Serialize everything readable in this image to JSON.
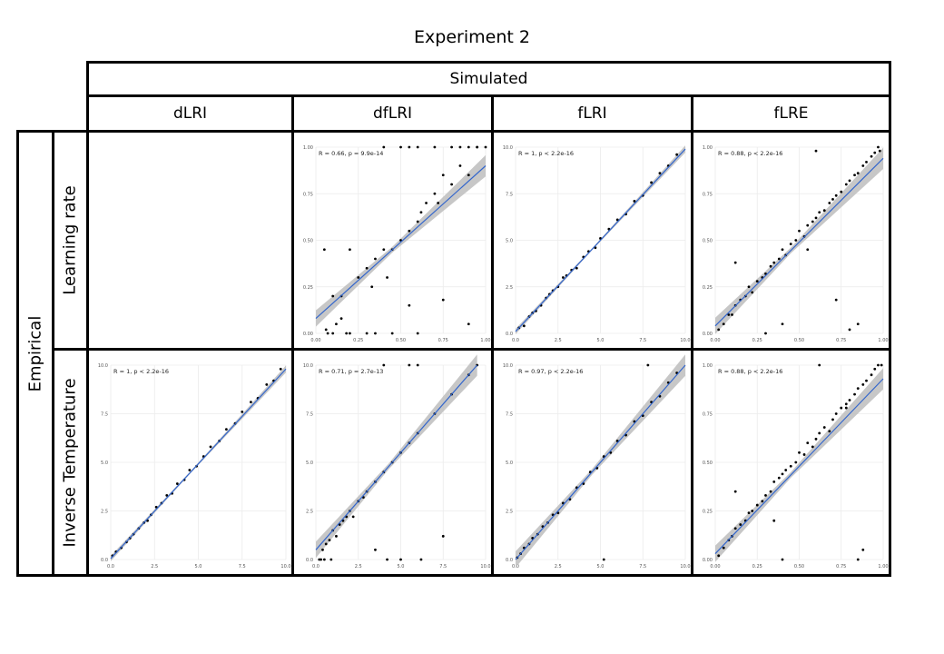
{
  "figure": {
    "title": "Experiment 2"
  },
  "headers": {
    "top": "Simulated",
    "columns": [
      "dLRI",
      "dfLRI",
      "fLRI",
      "fLRE"
    ],
    "side": "Empirical",
    "rows": [
      "Learning rate",
      "Inverse Temperature"
    ]
  },
  "colors": {
    "line": "#3366cc",
    "band": "#bdbdbd",
    "points": "#000000",
    "grid": "#ebebeb"
  },
  "chart_data": [
    {
      "id": "lr-dfLRI",
      "type": "scatter",
      "annotation": "R = 0.66, p = 9.9e-14",
      "xlim": [
        0,
        1
      ],
      "ylim": [
        0,
        1
      ],
      "xticks": [
        "0.00",
        "0.25",
        "0.50",
        "0.75",
        "1.00"
      ],
      "yticks": [
        "0.00",
        "0.25",
        "0.50",
        "0.75",
        "1.00"
      ],
      "x": [
        0.05,
        0.07,
        0.1,
        0.12,
        0.15,
        0.18,
        0.2,
        0.25,
        0.3,
        0.33,
        0.35,
        0.4,
        0.42,
        0.45,
        0.5,
        0.55,
        0.6,
        0.62,
        0.65,
        0.7,
        0.72,
        0.75,
        0.8,
        0.85,
        0.9,
        0.95,
        0.06,
        0.1,
        0.15,
        0.2,
        0.3,
        0.35,
        0.45,
        0.55,
        0.6,
        0.75,
        0.9,
        0.4,
        0.5,
        0.55,
        0.6,
        0.7,
        0.8,
        0.85,
        0.9,
        0.95,
        1.0
      ],
      "y": [
        0.45,
        0.0,
        0.2,
        0.05,
        0.2,
        0.0,
        0.45,
        0.3,
        0.35,
        0.25,
        0.4,
        0.45,
        0.3,
        0.45,
        0.5,
        0.55,
        0.6,
        0.65,
        0.7,
        0.75,
        0.7,
        0.85,
        0.8,
        0.9,
        0.85,
        1.0,
        0.02,
        0.0,
        0.08,
        0.0,
        0.0,
        0.0,
        0.0,
        0.15,
        0.0,
        0.18,
        0.05,
        1.0,
        1.0,
        1.0,
        1.0,
        1.0,
        1.0,
        1.0,
        1.0,
        1.0,
        1.0
      ],
      "fit": {
        "x": [
          0,
          1
        ],
        "y": [
          0.08,
          0.9
        ]
      }
    },
    {
      "id": "lr-fLRI",
      "type": "scatter",
      "annotation": "R = 1, p < 2.2e-16",
      "xlim": [
        0,
        10
      ],
      "ylim": [
        0,
        10
      ],
      "xticks": [
        "0.0",
        "2.5",
        "5.0",
        "7.5",
        "10.0"
      ],
      "yticks": [
        "0.0",
        "2.5",
        "5.0",
        "7.5",
        "10.0"
      ],
      "x": [
        0.2,
        0.5,
        0.8,
        1.0,
        1.2,
        1.5,
        1.8,
        2.0,
        2.2,
        2.5,
        2.8,
        3.0,
        3.3,
        3.6,
        4.0,
        4.3,
        4.7,
        5.0,
        5.5,
        6.0,
        6.5,
        7.0,
        7.5,
        8.0,
        8.5,
        9.0,
        9.5
      ],
      "y": [
        0.3,
        0.4,
        0.9,
        1.1,
        1.2,
        1.5,
        1.9,
        2.1,
        2.3,
        2.5,
        3.0,
        3.1,
        3.4,
        3.5,
        4.1,
        4.4,
        4.6,
        5.1,
        5.6,
        6.1,
        6.4,
        7.1,
        7.4,
        8.1,
        8.6,
        9.0,
        9.6
      ],
      "fit": {
        "x": [
          0,
          10
        ],
        "y": [
          0.1,
          9.9
        ]
      }
    },
    {
      "id": "lr-fLRE",
      "type": "scatter",
      "annotation": "R = 0.88, p < 2.2e-16",
      "xlim": [
        0,
        1
      ],
      "ylim": [
        0,
        1
      ],
      "xticks": [
        "0.00",
        "0.25",
        "0.50",
        "0.75",
        "1.00"
      ],
      "yticks": [
        "0.00",
        "0.25",
        "0.50",
        "0.75",
        "1.00"
      ],
      "x": [
        0.02,
        0.05,
        0.08,
        0.1,
        0.12,
        0.15,
        0.18,
        0.2,
        0.22,
        0.25,
        0.28,
        0.3,
        0.33,
        0.35,
        0.38,
        0.4,
        0.42,
        0.45,
        0.48,
        0.5,
        0.53,
        0.55,
        0.58,
        0.6,
        0.62,
        0.65,
        0.68,
        0.7,
        0.72,
        0.75,
        0.78,
        0.8,
        0.83,
        0.85,
        0.88,
        0.9,
        0.93,
        0.95,
        0.97,
        0.98,
        0.12,
        0.4,
        0.6,
        0.72,
        0.8,
        0.85,
        0.3,
        0.55
      ],
      "y": [
        0.02,
        0.05,
        0.1,
        0.1,
        0.15,
        0.18,
        0.2,
        0.25,
        0.22,
        0.28,
        0.3,
        0.32,
        0.36,
        0.38,
        0.4,
        0.45,
        0.42,
        0.48,
        0.5,
        0.55,
        0.52,
        0.58,
        0.6,
        0.62,
        0.65,
        0.66,
        0.7,
        0.72,
        0.74,
        0.76,
        0.8,
        0.82,
        0.85,
        0.86,
        0.9,
        0.92,
        0.95,
        0.97,
        1.0,
        0.98,
        0.38,
        0.05,
        0.98,
        0.18,
        0.02,
        0.05,
        0.0,
        0.45
      ],
      "fit": {
        "x": [
          0,
          1
        ],
        "y": [
          0.04,
          0.94
        ]
      }
    },
    {
      "id": "it-dLRI",
      "type": "scatter",
      "annotation": "R = 1, p < 2.2e-16",
      "xlim": [
        0,
        10
      ],
      "ylim": [
        0,
        10
      ],
      "xticks": [
        "0.0",
        "2.5",
        "5.0",
        "7.5",
        "10.0"
      ],
      "yticks": [
        "0.0",
        "2.5",
        "5.0",
        "7.5",
        "10.0"
      ],
      "x": [
        0.1,
        0.3,
        0.6,
        0.9,
        1.1,
        1.3,
        1.6,
        1.9,
        2.1,
        2.3,
        2.6,
        2.9,
        3.2,
        3.5,
        3.8,
        4.2,
        4.5,
        4.9,
        5.3,
        5.7,
        6.2,
        6.6,
        7.1,
        7.5,
        8.0,
        8.4,
        8.9,
        9.3,
        9.7
      ],
      "y": [
        0.2,
        0.4,
        0.6,
        0.9,
        1.1,
        1.3,
        1.6,
        1.9,
        2.0,
        2.3,
        2.7,
        2.9,
        3.3,
        3.4,
        3.9,
        4.1,
        4.6,
        4.8,
        5.3,
        5.8,
        6.1,
        6.7,
        7.0,
        7.6,
        8.1,
        8.3,
        9.0,
        9.2,
        9.8
      ],
      "fit": {
        "x": [
          0,
          10
        ],
        "y": [
          0.05,
          9.8
        ]
      }
    },
    {
      "id": "it-dfLRI",
      "type": "scatter",
      "annotation": "R = 0.71, p = 2.7e-13",
      "xlim": [
        0,
        10
      ],
      "ylim": [
        0,
        10
      ],
      "xticks": [
        "0.0",
        "2.5",
        "5.0",
        "7.5",
        "10.0"
      ],
      "yticks": [
        "0.0",
        "2.5",
        "5.0",
        "7.5",
        "10.0"
      ],
      "x": [
        0.2,
        0.4,
        0.6,
        0.8,
        1.0,
        1.2,
        1.4,
        1.6,
        1.8,
        2.0,
        2.2,
        2.5,
        2.8,
        3.0,
        3.5,
        4.0,
        4.5,
        5.0,
        5.5,
        6.0,
        7.0,
        8.0,
        9.0,
        0.3,
        0.5,
        0.9,
        3.5,
        4.2,
        5.0,
        6.2,
        7.5,
        4.0,
        5.5,
        6.0,
        9.5
      ],
      "y": [
        0.0,
        0.5,
        0.8,
        1.0,
        1.5,
        1.2,
        1.8,
        2.0,
        2.2,
        2.5,
        2.2,
        3.0,
        3.2,
        3.5,
        4.0,
        4.5,
        5.0,
        5.5,
        6.0,
        6.5,
        7.5,
        8.5,
        9.5,
        0.0,
        0.0,
        0.0,
        0.5,
        0.0,
        0.0,
        0.0,
        1.2,
        10.0,
        10.0,
        10.0,
        10.0
      ],
      "fit": {
        "x": [
          0,
          9.5
        ],
        "y": [
          0.5,
          10.0
        ]
      }
    },
    {
      "id": "it-fLRI",
      "type": "scatter",
      "annotation": "R = 0.97, p < 2.2e-16",
      "xlim": [
        0,
        10
      ],
      "ylim": [
        0,
        10
      ],
      "xticks": [
        "0.0",
        "2.5",
        "5.0",
        "7.5",
        "10.0"
      ],
      "yticks": [
        "0.0",
        "2.5",
        "5.0",
        "7.5",
        "10.0"
      ],
      "x": [
        0.1,
        0.3,
        0.5,
        0.8,
        1.0,
        1.3,
        1.6,
        1.9,
        2.2,
        2.5,
        2.8,
        3.2,
        3.6,
        4.0,
        4.4,
        4.8,
        5.2,
        5.6,
        6.0,
        6.5,
        7.0,
        7.5,
        8.0,
        8.5,
        9.0,
        9.5,
        5.2,
        7.8
      ],
      "y": [
        0.1,
        0.3,
        0.6,
        0.8,
        1.1,
        1.3,
        1.7,
        1.9,
        2.3,
        2.4,
        2.9,
        3.1,
        3.7,
        3.9,
        4.5,
        4.7,
        5.3,
        5.5,
        6.1,
        6.4,
        7.1,
        7.4,
        8.1,
        8.4,
        9.1,
        9.6,
        0.0,
        10.0
      ],
      "fit": {
        "x": [
          0,
          10
        ],
        "y": [
          0.0,
          10.0
        ]
      }
    },
    {
      "id": "it-fLRE",
      "type": "scatter",
      "annotation": "R = 0.88, p < 2.2e-16",
      "xlim": [
        0,
        1
      ],
      "ylim": [
        0,
        1
      ],
      "xticks": [
        "0.00",
        "0.25",
        "0.50",
        "0.75",
        "1.00"
      ],
      "yticks": [
        "0.00",
        "0.25",
        "0.50",
        "0.75",
        "1.00"
      ],
      "x": [
        0.02,
        0.05,
        0.08,
        0.1,
        0.12,
        0.15,
        0.18,
        0.2,
        0.22,
        0.25,
        0.28,
        0.3,
        0.33,
        0.35,
        0.38,
        0.4,
        0.42,
        0.45,
        0.48,
        0.5,
        0.53,
        0.55,
        0.58,
        0.6,
        0.62,
        0.65,
        0.68,
        0.7,
        0.72,
        0.75,
        0.78,
        0.8,
        0.83,
        0.85,
        0.88,
        0.9,
        0.93,
        0.95,
        0.97,
        0.99,
        0.12,
        0.35,
        0.4,
        0.85,
        0.88,
        0.62,
        0.78
      ],
      "y": [
        0.02,
        0.06,
        0.1,
        0.12,
        0.16,
        0.18,
        0.2,
        0.24,
        0.25,
        0.28,
        0.3,
        0.33,
        0.35,
        0.4,
        0.42,
        0.44,
        0.46,
        0.48,
        0.5,
        0.55,
        0.54,
        0.6,
        0.58,
        0.62,
        0.65,
        0.68,
        0.66,
        0.72,
        0.75,
        0.78,
        0.8,
        0.82,
        0.85,
        0.88,
        0.9,
        0.92,
        0.95,
        0.98,
        1.0,
        1.0,
        0.35,
        0.2,
        0.0,
        0.0,
        0.05,
        1.0,
        0.78
      ],
      "fit": {
        "x": [
          0,
          1
        ],
        "y": [
          0.03,
          0.93
        ]
      }
    }
  ]
}
